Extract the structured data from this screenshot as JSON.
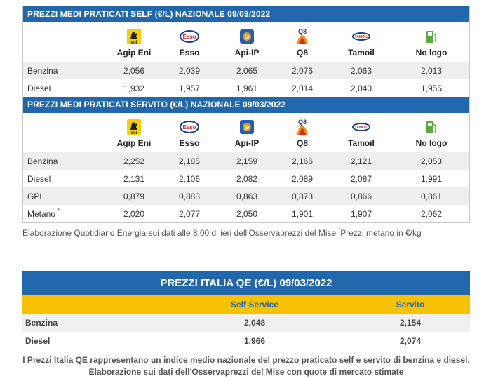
{
  "self": {
    "title": "PREZZI MEDI PRATICATI SELF (€/L) NAZIONALE 09/03/2022",
    "brands": [
      {
        "label": "Agip Eni",
        "icon": "eni-logo-icon"
      },
      {
        "label": "Esso",
        "icon": "esso-logo-icon"
      },
      {
        "label": "Api-IP",
        "icon": "ip-logo-icon"
      },
      {
        "label": "Q8",
        "icon": "q8-logo-icon"
      },
      {
        "label": "Tamoil",
        "icon": "tamoil-logo-icon"
      },
      {
        "label": "No logo",
        "icon": "fuel-pump-icon"
      }
    ],
    "rows": [
      {
        "label": "Benzina",
        "values": [
          "2,056",
          "2,039",
          "2,065",
          "2,076",
          "2,063",
          "2,013"
        ]
      },
      {
        "label": "Diesel",
        "values": [
          "1,932",
          "1,957",
          "1,961",
          "2,014",
          "2,040",
          "1,955"
        ]
      }
    ]
  },
  "servito": {
    "title": "PREZZI MEDI PRATICATI SERVITO (€/L) NAZIONALE 09/03/2022",
    "brands": [
      {
        "label": "Agip Eni",
        "icon": "eni-logo-icon"
      },
      {
        "label": "Esso",
        "icon": "esso-logo-icon"
      },
      {
        "label": "Api-IP",
        "icon": "ip-logo-icon"
      },
      {
        "label": "Q8",
        "icon": "q8-logo-icon"
      },
      {
        "label": "Tamoil",
        "icon": "tamoil-logo-icon"
      },
      {
        "label": "No logo",
        "icon": "fuel-pump-icon"
      }
    ],
    "rows": [
      {
        "label": "Benzina",
        "values": [
          "2,252",
          "2,185",
          "2,159",
          "2,166",
          "2,121",
          "2,053"
        ]
      },
      {
        "label": "Diesel",
        "values": [
          "2,131",
          "2,106",
          "2,082",
          "2,089",
          "2,087",
          "1,991"
        ]
      },
      {
        "label": "GPL",
        "values": [
          "0,879",
          "0,883",
          "0,863",
          "0,873",
          "0,866",
          "0,861"
        ]
      },
      {
        "label": "Metano",
        "sup": "*",
        "values": [
          "2,020",
          "2,077",
          "2,050",
          "1,901",
          "1,907",
          "2,062"
        ]
      }
    ]
  },
  "footnote": {
    "text": "Elaborazione Quotidiano Energia sui dati alle 8:00 di ieri dell'Osservaprezzi del Mise ",
    "sup": "*",
    "tail": "Prezzi metano in €/kg"
  },
  "qe": {
    "title": "PREZZI ITALIA QE (€/L) 09/03/2022",
    "col_self": "Self Service",
    "col_servito": "Servito",
    "rows": [
      {
        "label": "Benzina",
        "self": "2,048",
        "servito": "2,154"
      },
      {
        "label": "Diesel",
        "self": "1,966",
        "servito": "2,074"
      }
    ],
    "note_line1": "I Prezzi Italia QE rappresentano un indice medio nazionale del prezzo praticato self e servito di benzina e diesel.",
    "note_line2": "Elaborazione sui dati dell'Osservaprezzi del Mise con quote di mercato stimate"
  },
  "colors": {
    "header_blue": "#2067ad",
    "qe_yellow": "#f7c200",
    "row_shade": "#eeeeee"
  }
}
